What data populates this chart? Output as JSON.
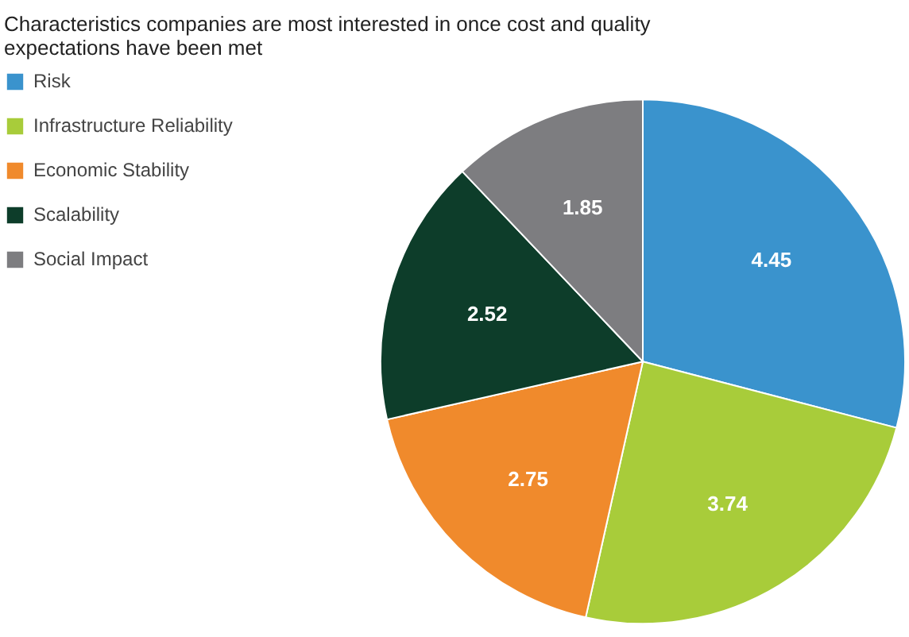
{
  "chart_data": {
    "type": "pie",
    "title": "Characteristics companies are most interested in once cost and quality expectations have been met",
    "categories": [
      "Risk",
      "Infrastructure Reliability",
      "Economic Stability",
      "Scalability",
      "Social Impact"
    ],
    "values": [
      4.45,
      3.74,
      2.75,
      2.52,
      1.85
    ],
    "colors": [
      "#3a93cd",
      "#a8cc3a",
      "#f08a2c",
      "#0d3d2a",
      "#7d7d80"
    ],
    "data_labels": true,
    "legend": "top left"
  }
}
